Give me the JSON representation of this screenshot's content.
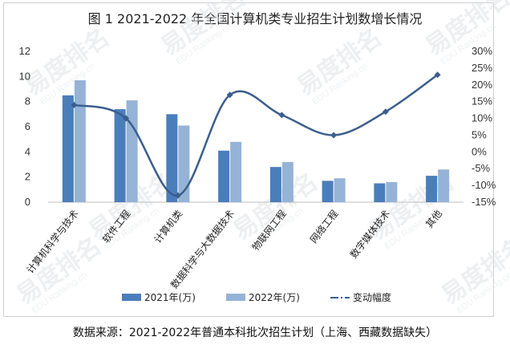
{
  "chart_data": {
    "type": "bar",
    "title": "图 1 2021-2022 年全国计算机类专业招生计划数增长情况",
    "categories": [
      "计算机科学与技术",
      "软件工程",
      "计算机类",
      "数据科学与大数据技术",
      "物联网工程",
      "网络工程",
      "数字媒体技术",
      "其他"
    ],
    "series": [
      {
        "name": "2021年(万)",
        "type": "bar",
        "axis": "left",
        "color": "#4a7ebb",
        "values": [
          8.5,
          7.4,
          7.0,
          4.1,
          2.8,
          1.7,
          1.5,
          2.1
        ]
      },
      {
        "name": "2022年(万)",
        "type": "bar",
        "axis": "left",
        "color": "#95b3d7",
        "values": [
          9.7,
          8.1,
          6.1,
          4.8,
          3.2,
          1.9,
          1.6,
          2.6
        ]
      },
      {
        "name": "变动幅度",
        "type": "line",
        "axis": "right",
        "color": "#3b5e8c",
        "values": [
          0.14,
          0.1,
          -0.13,
          0.17,
          0.11,
          0.05,
          0.12,
          0.23
        ]
      }
    ],
    "ylim_left": [
      0,
      12
    ],
    "yticks_left": [
      "0",
      "2",
      "4",
      "6",
      "8",
      "10",
      "12"
    ],
    "ylim_right": [
      -0.15,
      0.3
    ],
    "yticks_right": [
      "-15%",
      "-10%",
      "-5%",
      "0%",
      "5%",
      "10%",
      "15%",
      "20%",
      "25%",
      "30%"
    ],
    "grid": false,
    "legend": "bottom"
  },
  "source_note": "数据来源：2021-2022年普通本科批次招生计划（上海、西藏数据缺失）",
  "watermark": {
    "brand": "易度排名",
    "sub": "EDU Ranking.cn"
  }
}
